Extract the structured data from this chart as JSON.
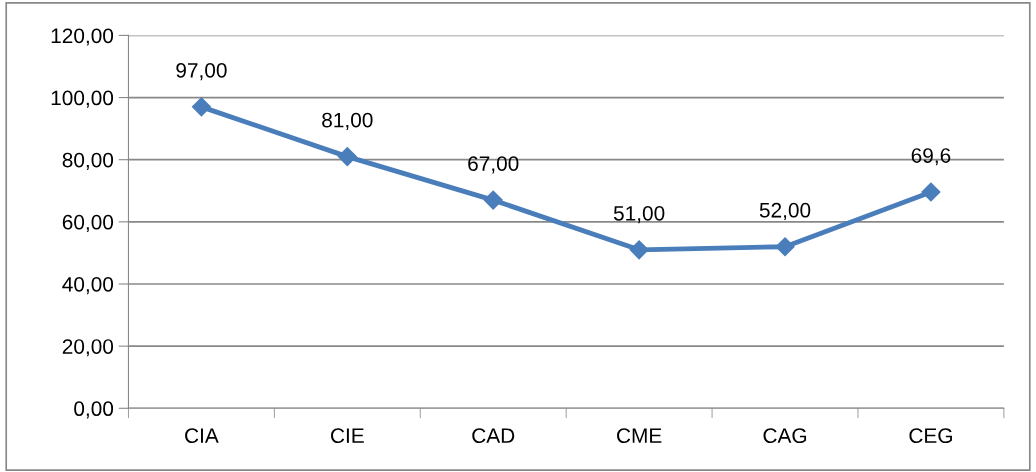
{
  "chart_data": {
    "type": "line",
    "categories": [
      "CIA",
      "CIE",
      "CAD",
      "CME",
      "CAG",
      "CEG"
    ],
    "series": [
      {
        "color": "#4a7ebb",
        "values": [
          97,
          81,
          67,
          51,
          52,
          69.6
        ],
        "value_labels": [
          "97,00",
          "81,00",
          "67,00",
          "51,00",
          "52,00",
          "69,6"
        ]
      }
    ],
    "ylim": [
      0,
      120
    ],
    "yticks": [
      {
        "value": 0,
        "label": "0,00"
      },
      {
        "value": 20,
        "label": "20,00"
      },
      {
        "value": 40,
        "label": "40,00"
      },
      {
        "value": 60,
        "label": "60,00"
      },
      {
        "value": 80,
        "label": "80,00"
      },
      {
        "value": 100,
        "label": "100,00"
      },
      {
        "value": 120,
        "label": "120,00"
      }
    ],
    "grid": "y",
    "marker": "diamond",
    "line_style": "solid"
  }
}
